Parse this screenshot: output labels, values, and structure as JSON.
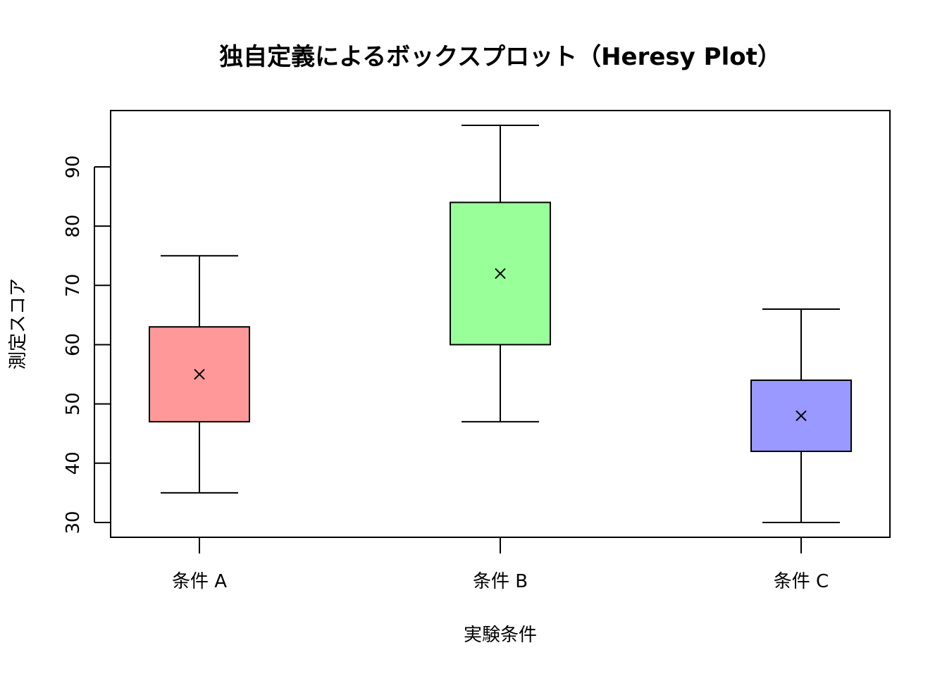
{
  "chart_data": {
    "type": "box",
    "title": "独自定義によるボックスプロット（Heresy Plot）",
    "xlabel": "実験条件",
    "ylabel": "測定スコア",
    "categories": [
      "条件 A",
      "条件 B",
      "条件 C"
    ],
    "y_ticks": [
      30,
      40,
      50,
      60,
      70,
      80,
      90
    ],
    "ylim": [
      27.5,
      99.5
    ],
    "grid": false,
    "legend": "none",
    "boxes": [
      {
        "category": "条件 A",
        "whisker_low": 35,
        "q1": 47,
        "mean": 55,
        "q3": 63,
        "whisker_high": 75,
        "color": "#FF9999"
      },
      {
        "category": "条件 B",
        "whisker_low": 47,
        "q1": 60,
        "mean": 72,
        "q3": 84,
        "whisker_high": 97,
        "color": "#99FF99"
      },
      {
        "category": "条件 C",
        "whisker_low": 30,
        "q1": 42,
        "mean": 48,
        "q3": 54,
        "whisker_high": 66,
        "color": "#9999FF"
      }
    ],
    "center_marker": "×"
  }
}
